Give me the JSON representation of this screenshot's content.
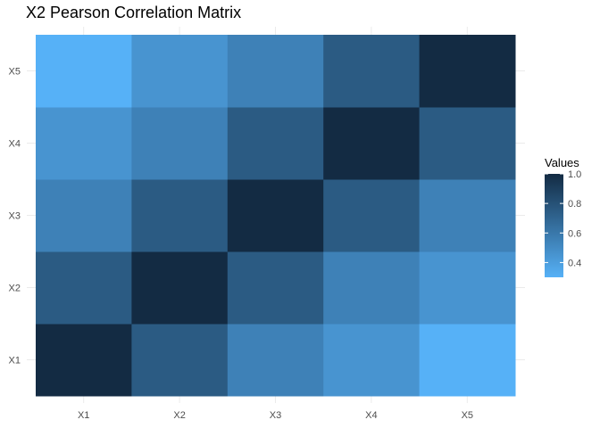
{
  "chart_data": {
    "type": "heatmap",
    "title": "X2 Pearson Correlation Matrix",
    "x_categories": [
      "X1",
      "X2",
      "X3",
      "X4",
      "X5"
    ],
    "y_categories": [
      "X1",
      "X2",
      "X3",
      "X4",
      "X5"
    ],
    "values": [
      [
        1.0,
        0.75,
        0.55,
        0.45,
        0.3
      ],
      [
        0.75,
        1.0,
        0.75,
        0.55,
        0.45
      ],
      [
        0.55,
        0.75,
        1.0,
        0.75,
        0.55
      ],
      [
        0.45,
        0.55,
        0.75,
        1.0,
        0.75
      ],
      [
        0.3,
        0.45,
        0.55,
        0.75,
        1.0
      ]
    ],
    "legend": {
      "title": "Values",
      "ticks": [
        "0.4",
        "0.6",
        "0.8",
        "1.0"
      ],
      "range": [
        0.3,
        1.0
      ],
      "low_color": "#56B1F7",
      "high_color": "#132B43"
    },
    "grid": true
  }
}
